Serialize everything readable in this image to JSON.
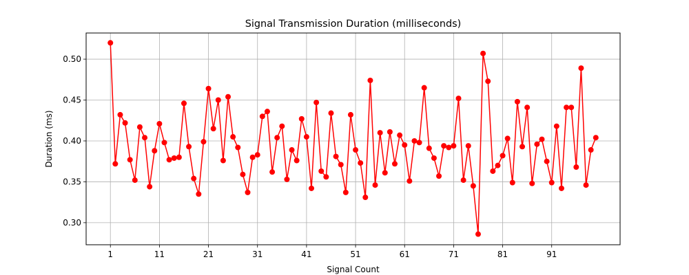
{
  "chart_data": {
    "type": "line",
    "title": "Signal Transmission Duration (milliseconds)",
    "xlabel": "Signal Count",
    "ylabel": "Duration (ms)",
    "xlim": [
      -3.95,
      104.95
    ],
    "ylim": [
      0.273,
      0.532
    ],
    "xticks": [
      1,
      11,
      21,
      31,
      41,
      51,
      61,
      71,
      81,
      91
    ],
    "yticks": [
      0.3,
      0.35,
      0.4,
      0.45,
      0.5
    ],
    "ytick_labels": [
      "0.30",
      "0.35",
      "0.40",
      "0.45",
      "0.50"
    ],
    "grid": true,
    "legend": "none",
    "series": [
      {
        "color": "#ff0000",
        "marker": "circle",
        "x": [
          1,
          2,
          3,
          4,
          5,
          6,
          7,
          8,
          9,
          10,
          11,
          12,
          13,
          14,
          15,
          16,
          17,
          18,
          19,
          20,
          21,
          22,
          23,
          24,
          25,
          26,
          27,
          28,
          29,
          30,
          31,
          32,
          33,
          34,
          35,
          36,
          37,
          38,
          39,
          40,
          41,
          42,
          43,
          44,
          45,
          46,
          47,
          48,
          49,
          50,
          51,
          52,
          53,
          54,
          55,
          56,
          57,
          58,
          59,
          60,
          61,
          62,
          63,
          64,
          65,
          66,
          67,
          68,
          69,
          70,
          71,
          72,
          73,
          74,
          75,
          76,
          77,
          78,
          79,
          80,
          81,
          82,
          83,
          84,
          85,
          86,
          87,
          88,
          89,
          90,
          91,
          92,
          93,
          94,
          95,
          96,
          97,
          98,
          99,
          100
        ],
        "values": [
          0.52,
          0.372,
          0.432,
          0.422,
          0.377,
          0.352,
          0.417,
          0.404,
          0.344,
          0.388,
          0.421,
          0.398,
          0.377,
          0.379,
          0.38,
          0.446,
          0.393,
          0.354,
          0.335,
          0.399,
          0.464,
          0.415,
          0.45,
          0.376,
          0.454,
          0.405,
          0.392,
          0.359,
          0.337,
          0.38,
          0.383,
          0.43,
          0.436,
          0.362,
          0.404,
          0.418,
          0.353,
          0.389,
          0.376,
          0.427,
          0.405,
          0.342,
          0.447,
          0.363,
          0.356,
          0.434,
          0.381,
          0.371,
          0.337,
          0.432,
          0.389,
          0.373,
          0.331,
          0.474,
          0.346,
          0.41,
          0.361,
          0.411,
          0.372,
          0.407,
          0.395,
          0.351,
          0.4,
          0.398,
          0.465,
          0.391,
          0.379,
          0.357,
          0.394,
          0.392,
          0.394,
          0.452,
          0.352,
          0.394,
          0.345,
          0.286,
          0.507,
          0.473,
          0.363,
          0.37,
          0.382,
          0.403,
          0.349,
          0.448,
          0.393,
          0.441,
          0.348,
          0.396,
          0.402,
          0.375,
          0.349,
          0.418,
          0.342,
          0.441,
          0.441,
          0.368,
          0.489,
          0.346,
          0.389,
          0.404
        ]
      }
    ]
  }
}
